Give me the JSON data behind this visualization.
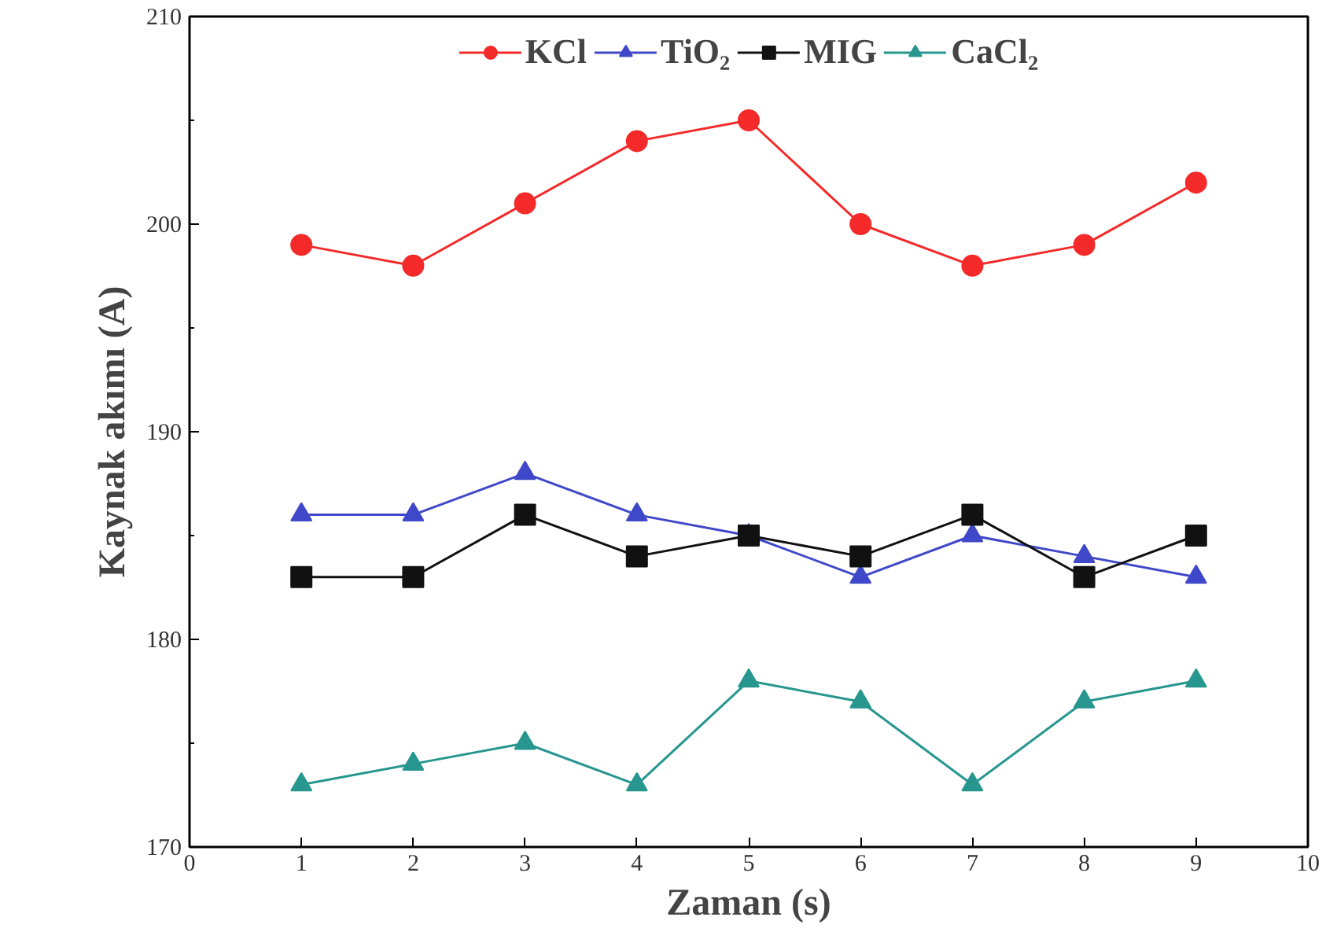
{
  "chart_data": {
    "type": "line",
    "xlabel": "Zaman (s)",
    "ylabel": "Kaynak akımı (A)",
    "x": [
      1,
      2,
      3,
      4,
      5,
      6,
      7,
      8,
      9
    ],
    "series": [
      {
        "name": "KCl",
        "color": "#f42a2a",
        "marker": "circle",
        "values": [
          199,
          198,
          201,
          204,
          205,
          200,
          198,
          199,
          202
        ]
      },
      {
        "name": "TiO₂",
        "color": "#3f48c8",
        "marker": "triangle",
        "values": [
          186,
          186,
          188,
          186,
          185,
          183,
          185,
          184,
          183
        ]
      },
      {
        "name": "MIG",
        "color": "#111111",
        "marker": "square",
        "values": [
          183,
          183,
          186,
          184,
          185,
          184,
          186,
          183,
          185
        ]
      },
      {
        "name": "CaCl₂",
        "color": "#27968f",
        "marker": "triangle",
        "values": [
          173,
          174,
          175,
          173,
          178,
          177,
          173,
          177,
          178
        ]
      }
    ],
    "xlim": [
      0,
      10
    ],
    "xticks": [
      0,
      1,
      2,
      3,
      4,
      5,
      6,
      7,
      8,
      9,
      10
    ],
    "ylim": [
      170,
      210
    ],
    "yticks": [
      170,
      180,
      190,
      200,
      210
    ],
    "grid": false,
    "legend": "top",
    "line_style": "solid"
  }
}
